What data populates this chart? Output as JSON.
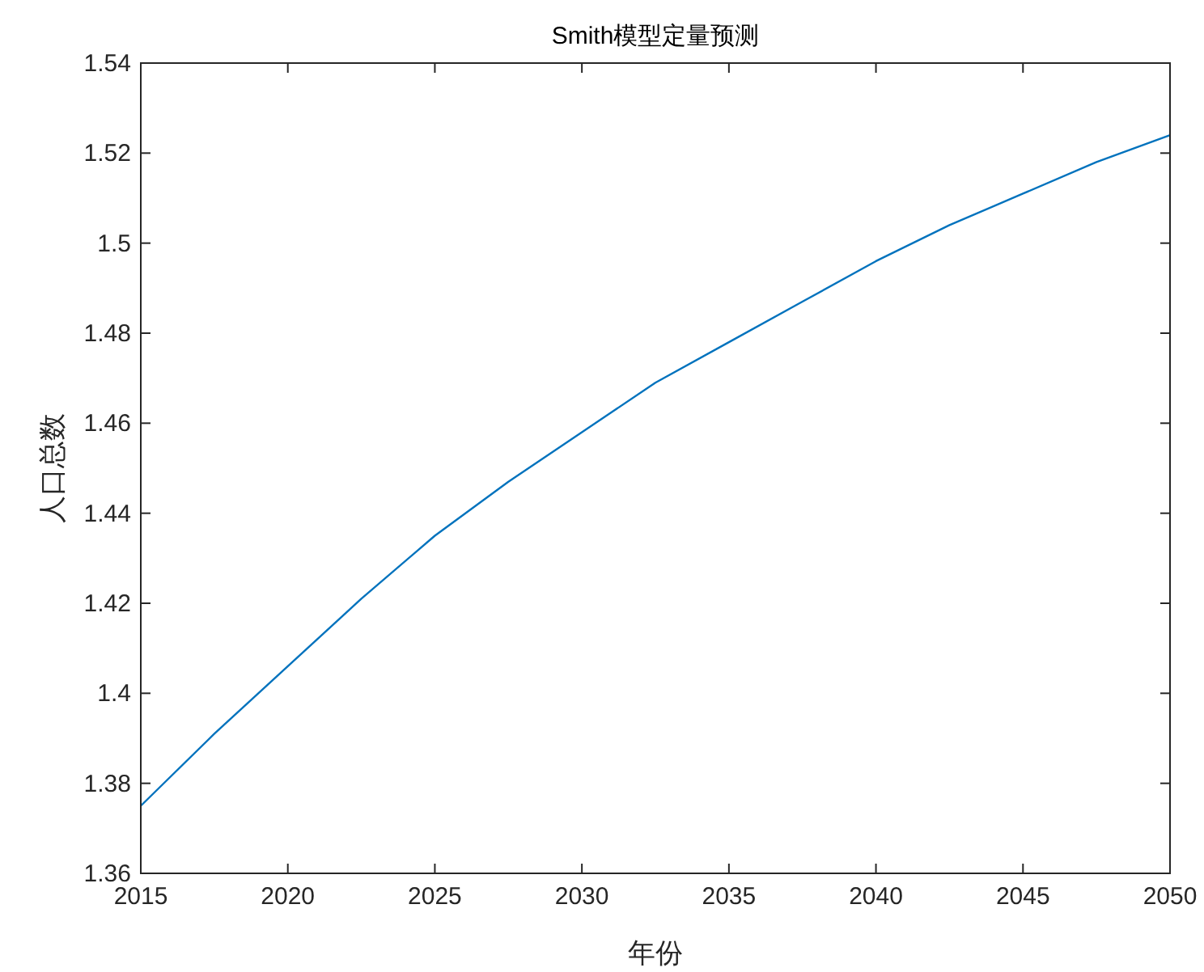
{
  "chart_data": {
    "type": "line",
    "title": "Smith模型定量预测",
    "xlabel": "年份",
    "ylabel": "人口总数",
    "x": [
      2015,
      2017.5,
      2020,
      2022.5,
      2025,
      2027.5,
      2030,
      2032.5,
      2035,
      2037.5,
      2040,
      2042.5,
      2045,
      2047.5,
      2050
    ],
    "series": [
      {
        "color": "#0072bd",
        "values": [
          1.375,
          1.391,
          1.406,
          1.421,
          1.435,
          1.447,
          1.458,
          1.469,
          1.478,
          1.487,
          1.496,
          1.504,
          1.511,
          1.518,
          1.524
        ]
      }
    ],
    "xlim": [
      2015,
      2050
    ],
    "ylim": [
      1.36,
      1.54
    ],
    "xticks": [
      2015,
      2020,
      2025,
      2030,
      2035,
      2040,
      2045,
      2050
    ],
    "yticks": [
      1.36,
      1.38,
      1.4,
      1.42,
      1.44,
      1.46,
      1.48,
      1.5,
      1.52,
      1.54
    ]
  }
}
